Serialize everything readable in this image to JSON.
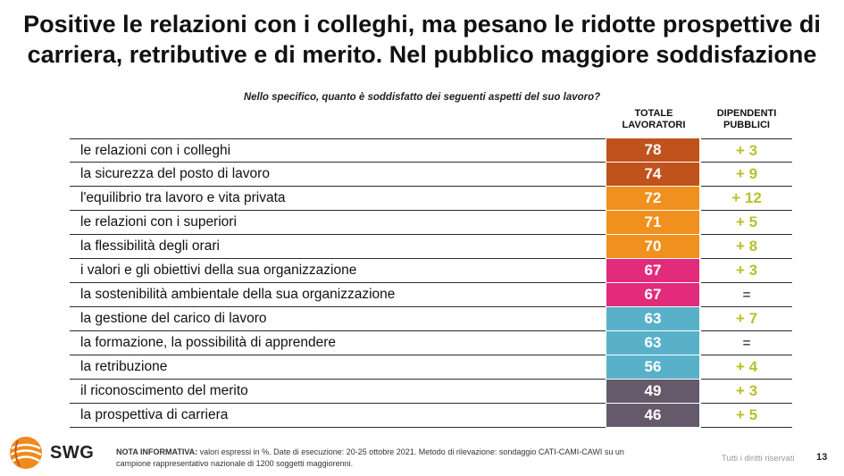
{
  "title": {
    "line1": "Positive le relazioni con i colleghi, ma pesano le ridotte prospettive di",
    "line2": "carriera, retributive e di merito. Nel pubblico maggiore soddisfazione"
  },
  "question": "Nello specifico, quanto è soddisfatto dei seguenti aspetti del suo lavoro?",
  "headers": {
    "total_line1": "TOTALE",
    "total_line2": "LAVORATORI",
    "public_line1": "DIPENDENTI",
    "public_line2": "PUBBLICI"
  },
  "colors": {
    "dark_orange": "#c0531c",
    "orange": "#f0901e",
    "magenta": "#e22b7a",
    "light_blue": "#58b1c8",
    "purple_gray": "#655a6c",
    "delta_green": "#b7c22b"
  },
  "chart_data": {
    "type": "table",
    "title": "Nello specifico, quanto è soddisfatto dei seguenti aspetti del suo lavoro?",
    "columns": [
      "TOTALE LAVORATORI",
      "DIPENDENTI PUBBLICI"
    ],
    "rows": [
      {
        "label": "le relazioni con i colleghi",
        "total": 78,
        "public_delta": "+ 3",
        "color": "#c0531c"
      },
      {
        "label": "la sicurezza del posto di lavoro",
        "total": 74,
        "public_delta": "+ 9",
        "color": "#c0531c"
      },
      {
        "label": "l'equilibrio tra lavoro e vita privata",
        "total": 72,
        "public_delta": "+ 12",
        "color": "#f0901e"
      },
      {
        "label": "le relazioni con i superiori",
        "total": 71,
        "public_delta": "+ 5",
        "color": "#f0901e"
      },
      {
        "label": "la flessibilità degli orari",
        "total": 70,
        "public_delta": "+ 8",
        "color": "#f0901e"
      },
      {
        "label": "i valori e gli obiettivi della sua organizzazione",
        "total": 67,
        "public_delta": "+ 3",
        "color": "#e22b7a"
      },
      {
        "label": "la sostenibilità ambientale della sua organizzazione",
        "total": 67,
        "public_delta": "=",
        "color": "#e22b7a"
      },
      {
        "label": "la gestione del carico di lavoro",
        "total": 63,
        "public_delta": "+ 7",
        "color": "#58b1c8"
      },
      {
        "label": "la formazione, la possibilità di apprendere",
        "total": 63,
        "public_delta": "=",
        "color": "#58b1c8"
      },
      {
        "label": "la retribuzione",
        "total": 56,
        "public_delta": "+ 4",
        "color": "#58b1c8"
      },
      {
        "label": "il riconoscimento del merito",
        "total": 49,
        "public_delta": "+ 3",
        "color": "#655a6c"
      },
      {
        "label": "la prospettiva di carriera",
        "total": 46,
        "public_delta": "+ 5",
        "color": "#655a6c"
      }
    ]
  },
  "footer": {
    "logo_text": "SWG",
    "note_label": "NOTA INFORMATIVA:",
    "note_line1": " valori espressi in %. Date di esecuzione: 20-25 ottobre 2021. Metodo di rilevazione: sondaggio CATI-CAMI-CAWI su un",
    "note_line2": "campione rappresentativo nazionale di 1200 soggetti maggiorenni.",
    "rights": "Tutti i diritti riservati",
    "page_number": "13"
  }
}
